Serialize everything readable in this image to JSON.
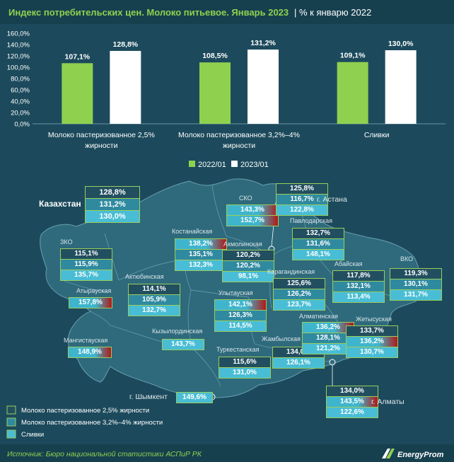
{
  "header": {
    "title": "Индекс потребительских цен. Молоко питьевое. Январь 2023",
    "subtitle": "| % к январю 2022"
  },
  "colors": {
    "background": "#1c4a5c",
    "green": "#8fd14f",
    "white": "#ffffff",
    "c0": "#224f60",
    "c1": "#2f8aa0",
    "c2": "#48bdd5",
    "red": "#b01818"
  },
  "chart_data": [
    {
      "type": "bar",
      "categories": [
        "Молоко пастеризованное 2,5% жирности",
        "Молоко пастеризованное 3,2%–4% жирности",
        "Сливки"
      ],
      "series": [
        {
          "name": "2022/01",
          "values": [
            107.1,
            108.5,
            109.1
          ],
          "labels": [
            "107,1%",
            "108,5%",
            "109,1%"
          ]
        },
        {
          "name": "2023/01",
          "values": [
            128.8,
            131.2,
            130.0
          ],
          "labels": [
            "128,8%",
            "131,2%",
            "130,0%"
          ]
        }
      ],
      "yticks": [
        "0,0%",
        "20,0%",
        "40,0%",
        "60,0%",
        "80,0%",
        "100,0%",
        "120,0%",
        "140,0%",
        "160,0%"
      ],
      "ylim": [
        0,
        160
      ],
      "grid": false,
      "legend": "bottom"
    },
    {
      "type": "table",
      "country": {
        "name": "Казахстан",
        "values": [
          "128,8%",
          "131,2%",
          "130,0%"
        ]
      },
      "regions": [
        {
          "id": "zko",
          "name": "ЗКО",
          "values": [
            "115,1%",
            "115,9%",
            "135,7%"
          ]
        },
        {
          "id": "atyrau",
          "name": "Атырауская",
          "values": [
            "",
            "",
            "157,8%"
          ]
        },
        {
          "id": "mangistau",
          "name": "Мангистауская",
          "values": [
            "",
            "",
            "148,9%"
          ]
        },
        {
          "id": "aktobe",
          "name": "Актюбинская",
          "values": [
            "114,1%",
            "105,9%",
            "132,7%"
          ]
        },
        {
          "id": "kostanay",
          "name": "Костанайская",
          "values": [
            "138,2%",
            "135,1%",
            "132,3%"
          ]
        },
        {
          "id": "sko",
          "name": "СКО",
          "values": [
            "143,3%",
            "",
            "152,7%"
          ]
        },
        {
          "id": "akmola",
          "name": "Акмолинская",
          "values": [
            "120,2%",
            "120,2%",
            "98,1%"
          ]
        },
        {
          "id": "astana",
          "name": "г. Астана",
          "values": [
            "125,8%",
            "116,7%",
            "122,8%"
          ]
        },
        {
          "id": "pavlodar",
          "name": "Павлодарская",
          "values": [
            "132,7%",
            "131,6%",
            "148,1%"
          ]
        },
        {
          "id": "karaganda",
          "name": "Карагандинская",
          "values": [
            "125,6%",
            "126,2%",
            "123,7%"
          ]
        },
        {
          "id": "abay",
          "name": "Абайская",
          "values": [
            "117,8%",
            "132,1%",
            "113,4%"
          ]
        },
        {
          "id": "vko",
          "name": "ВКО",
          "values": [
            "119,3%",
            "130,1%",
            "131,7%"
          ]
        },
        {
          "id": "ulytau",
          "name": "Улытауская",
          "values": [
            "142,1%",
            "126,3%",
            "114,5%"
          ]
        },
        {
          "id": "kyzylorda",
          "name": "Кызылординская",
          "values": [
            "",
            "",
            "143,7%"
          ]
        },
        {
          "id": "turkestan",
          "name": "Туркестанская",
          "values": [
            "115,6%",
            "",
            "131,0%"
          ]
        },
        {
          "id": "zhambyl",
          "name": "Жамбылская",
          "values": [
            "134,0%",
            "",
            "126,1%"
          ]
        },
        {
          "id": "almatinsk",
          "name": "Алматинская",
          "values": [
            "136,2%",
            "128,1%",
            "121,2%"
          ]
        },
        {
          "id": "zhetysu",
          "name": "Жетысуская",
          "values": [
            "133,7%",
            "136,2%",
            "130,7%"
          ]
        },
        {
          "id": "shymkent",
          "name": "г. Шымкент",
          "values": [
            "",
            "",
            "149,6%"
          ]
        },
        {
          "id": "almaty",
          "name": "г. Алматы",
          "values": [
            "134,0%",
            "143,5%",
            "122,6%"
          ]
        }
      ],
      "legend": [
        "Молоко пастеризованное 2,5% жирности",
        "Молоко пастеризованное 3,2%–4% жирности",
        "Сливки"
      ]
    }
  ],
  "footer": {
    "source": "Источник: Бюро национальной статистики АСПиР РК",
    "brand": "EnergyProm"
  }
}
